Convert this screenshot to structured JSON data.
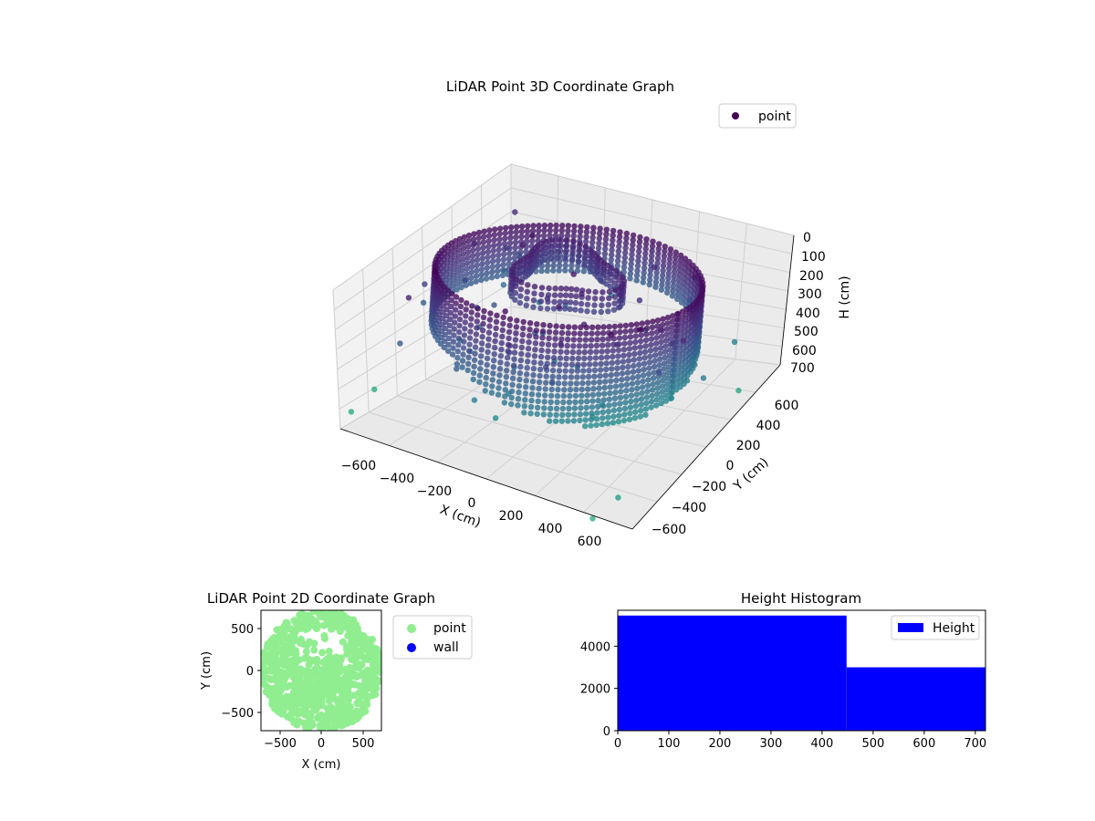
{
  "chart_data": [
    {
      "type": "scatter",
      "projection": "3d",
      "title": "LiDAR Point 3D Coordinate Graph",
      "xlabel": "X (cm)",
      "ylabel": "Y (cm)",
      "zlabel": "H (cm)",
      "xlim": [
        -700,
        700
      ],
      "ylim": [
        -700,
        700
      ],
      "zlim": [
        0,
        720
      ],
      "z_inverted": true,
      "xticks": [
        "−600",
        "−400",
        "−200",
        "0",
        "200",
        "400",
        "600"
      ],
      "yticks": [
        "−600",
        "−400",
        "−200",
        "0",
        "200",
        "400",
        "600"
      ],
      "zticks": [
        "0",
        "100",
        "200",
        "300",
        "400",
        "500",
        "600",
        "700"
      ],
      "legend": [
        "point"
      ],
      "legend_position": "top-right",
      "colormap": "viridis",
      "grid": true,
      "series": [
        {
          "name": "point",
          "description_points": [
            {
              "x": 500,
              "y": 300,
              "h": 300
            },
            {
              "x": 300,
              "y": 500,
              "h": 300
            },
            {
              "x": -200,
              "y": 500,
              "h": 300
            },
            {
              "x": -500,
              "y": 200,
              "h": 300
            },
            {
              "x": -500,
              "y": -300,
              "h": 300
            },
            {
              "x": -200,
              "y": -500,
              "h": 300
            },
            {
              "x": 200,
              "y": -500,
              "h": 300
            },
            {
              "x": 500,
              "y": -200,
              "h": 300
            },
            {
              "x": -150,
              "y": 200,
              "h": 280
            },
            {
              "x": 100,
              "y": 300,
              "h": 250
            },
            {
              "x": 650,
              "y": 400,
              "h": 700
            },
            {
              "x": -700,
              "y": -600,
              "h": 700
            },
            {
              "x": 600,
              "y": -650,
              "h": 650
            }
          ]
        }
      ]
    },
    {
      "type": "scatter",
      "title": "LiDAR Point 2D Coordinate Graph",
      "xlabel": "X (cm)",
      "ylabel": "Y (cm)",
      "xlim": [
        -720,
        720
      ],
      "ylim": [
        -720,
        720
      ],
      "xticks": [
        "−500",
        "0",
        "500"
      ],
      "yticks": [
        "500",
        "0",
        "−500"
      ],
      "legend": [
        "point",
        "wall"
      ],
      "legend_position": "outside-right",
      "colors": {
        "point": "#90ee90",
        "wall": "#0000ff"
      }
    },
    {
      "type": "bar",
      "title": "Height Histogram",
      "legend": [
        "Height"
      ],
      "legend_position": "top-right",
      "color": "#0000ff",
      "bins": [
        {
          "start": 0,
          "end": 448,
          "count": 5450
        },
        {
          "start": 448,
          "end": 720,
          "count": 3000
        }
      ],
      "xlim": [
        0,
        720
      ],
      "ylim": [
        0,
        5700
      ],
      "xticks": [
        "0",
        "100",
        "200",
        "300",
        "400",
        "500",
        "600",
        "700"
      ],
      "yticks": [
        "0",
        "2000",
        "4000"
      ]
    }
  ]
}
